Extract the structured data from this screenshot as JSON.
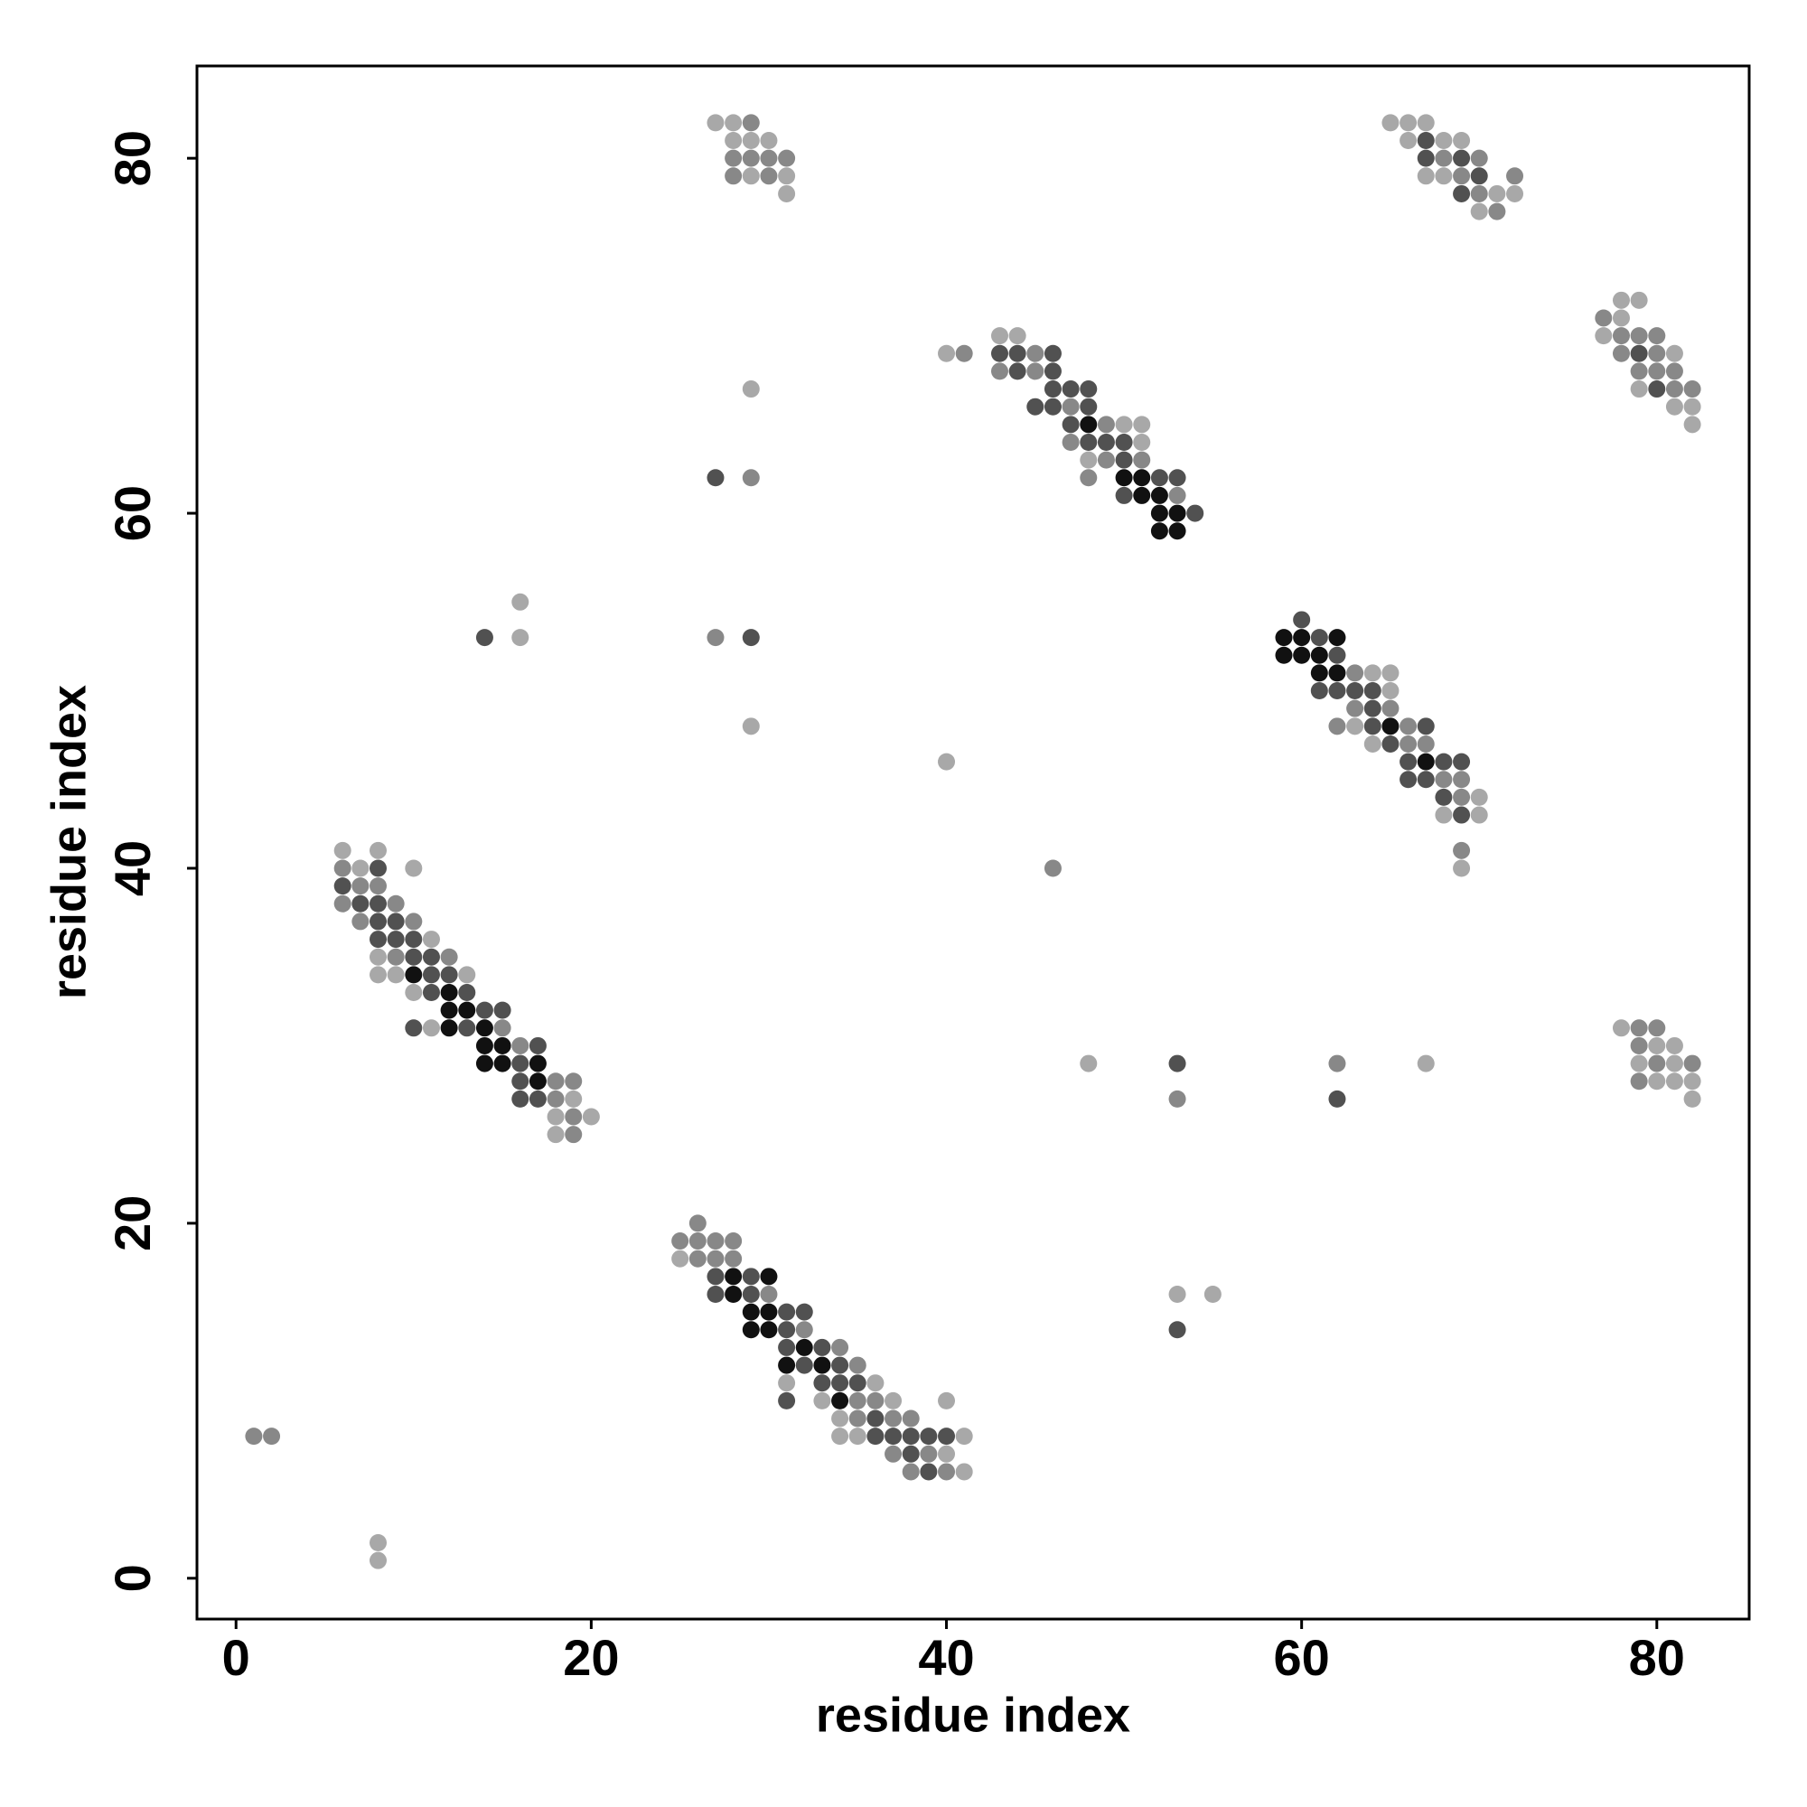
{
  "chart_data": {
    "type": "scatter",
    "xlabel": "residue index",
    "ylabel": "residue index",
    "xlim": [
      -2.2,
      85.2
    ],
    "ylim": [
      -2.3,
      85.2
    ],
    "xticks": [
      0,
      20,
      40,
      60,
      80
    ],
    "yticks": [
      0,
      20,
      40,
      60,
      80
    ],
    "series": [
      {
        "color": "#a8a8a8",
        "x": [
          27,
          28,
          28,
          29,
          30,
          29,
          31,
          31,
          65,
          66,
          67,
          66,
          68,
          69,
          67,
          68,
          71,
          72,
          70,
          78,
          79,
          78,
          77,
          81,
          79,
          81,
          82,
          82,
          40,
          43,
          44,
          50,
          51,
          51,
          48,
          29,
          64,
          65,
          65,
          63,
          64,
          70,
          68,
          70,
          69,
          6,
          8,
          7,
          10,
          11,
          8,
          8,
          9,
          13,
          10,
          11,
          19,
          18,
          20,
          18,
          25,
          31,
          36,
          33,
          37,
          40,
          34,
          34,
          35,
          41,
          40,
          41,
          16,
          16,
          29,
          40,
          48,
          67,
          53,
          55,
          8,
          8,
          78,
          80,
          81,
          79,
          81,
          80,
          81,
          82,
          82
        ],
        "values": [
          82,
          82,
          81,
          81,
          81,
          79,
          79,
          78,
          82,
          82,
          82,
          81,
          81,
          81,
          79,
          79,
          78,
          78,
          77,
          72,
          72,
          71,
          70,
          69,
          67,
          66,
          66,
          65,
          69,
          70,
          70,
          65,
          65,
          64,
          63,
          67,
          51,
          51,
          50,
          48,
          47,
          44,
          43,
          43,
          40,
          41,
          41,
          40,
          40,
          36,
          35,
          34,
          34,
          34,
          33,
          31,
          27,
          26,
          26,
          25,
          18,
          11,
          11,
          10,
          10,
          10,
          9,
          8,
          8,
          8,
          7,
          6,
          55,
          53,
          48,
          46,
          29,
          29,
          16,
          16,
          2,
          1,
          31,
          30,
          30,
          29,
          29,
          28,
          28,
          28,
          27
        ]
      },
      {
        "color": "#888888",
        "x": [
          29,
          28,
          29,
          30,
          31,
          28,
          30,
          70,
          68,
          69,
          72,
          70,
          71,
          77,
          78,
          79,
          80,
          78,
          80,
          79,
          80,
          81,
          81,
          82,
          41,
          45,
          43,
          45,
          47,
          49,
          47,
          49,
          51,
          29,
          48,
          53,
          63,
          63,
          65,
          62,
          66,
          66,
          67,
          68,
          69,
          69,
          69,
          6,
          7,
          8,
          6,
          9,
          7,
          10,
          9,
          12,
          15,
          16,
          18,
          19,
          18,
          19,
          19,
          26,
          25,
          26,
          27,
          28,
          26,
          27,
          28,
          30,
          32,
          34,
          35,
          35,
          36,
          35,
          37,
          38,
          37,
          39,
          38,
          40,
          27,
          46,
          62,
          53,
          1,
          2,
          79,
          80,
          79,
          80,
          82,
          79
        ],
        "values": [
          82,
          80,
          80,
          80,
          80,
          79,
          79,
          80,
          80,
          79,
          79,
          78,
          77,
          71,
          70,
          70,
          70,
          69,
          69,
          68,
          68,
          68,
          67,
          67,
          69,
          69,
          68,
          68,
          66,
          65,
          64,
          63,
          63,
          62,
          62,
          61,
          51,
          49,
          49,
          48,
          48,
          47,
          47,
          45,
          45,
          44,
          41,
          40,
          39,
          39,
          38,
          38,
          37,
          37,
          35,
          35,
          31,
          30,
          28,
          28,
          27,
          26,
          25,
          20,
          19,
          19,
          19,
          19,
          18,
          18,
          18,
          16,
          14,
          13,
          12,
          10,
          10,
          9,
          9,
          9,
          7,
          7,
          6,
          6,
          53,
          40,
          29,
          27,
          8,
          8,
          31,
          31,
          30,
          29,
          29,
          28
        ]
      },
      {
        "color": "#515151",
        "x": [
          67,
          67,
          69,
          70,
          69,
          79,
          80,
          43,
          44,
          46,
          44,
          46,
          46,
          47,
          48,
          45,
          46,
          48,
          47,
          48,
          49,
          50,
          50,
          27,
          52,
          53,
          50,
          54,
          60,
          61,
          62,
          61,
          62,
          63,
          64,
          64,
          64,
          67,
          65,
          66,
          68,
          69,
          66,
          67,
          68,
          69,
          8,
          6,
          7,
          8,
          8,
          9,
          8,
          9,
          10,
          10,
          11,
          11,
          12,
          11,
          13,
          14,
          15,
          10,
          13,
          17,
          16,
          16,
          16,
          17,
          27,
          29,
          27,
          29,
          31,
          32,
          31,
          31,
          33,
          32,
          34,
          33,
          34,
          35,
          31,
          36,
          36,
          37,
          38,
          39,
          40,
          38,
          39,
          14,
          29,
          53,
          62,
          53
        ],
        "values": [
          81,
          80,
          80,
          79,
          78,
          69,
          67,
          69,
          69,
          69,
          68,
          68,
          67,
          67,
          67,
          66,
          66,
          66,
          65,
          64,
          64,
          64,
          63,
          62,
          62,
          62,
          61,
          60,
          54,
          53,
          52,
          50,
          50,
          50,
          50,
          49,
          48,
          48,
          47,
          46,
          46,
          46,
          45,
          45,
          44,
          43,
          40,
          39,
          38,
          38,
          37,
          37,
          36,
          36,
          36,
          35,
          35,
          34,
          34,
          33,
          33,
          32,
          32,
          31,
          31,
          30,
          29,
          28,
          27,
          27,
          17,
          17,
          16,
          16,
          15,
          15,
          14,
          13,
          13,
          12,
          12,
          11,
          11,
          11,
          10,
          9,
          8,
          8,
          8,
          8,
          8,
          7,
          6,
          53,
          53,
          29,
          27,
          14
        ]
      },
      {
        "color": "#111111",
        "x": [
          48,
          50,
          51,
          51,
          52,
          52,
          53,
          52,
          53,
          59,
          60,
          62,
          59,
          60,
          61,
          61,
          62,
          65,
          67,
          10,
          12,
          12,
          13,
          12,
          14,
          14,
          15,
          14,
          15,
          17,
          17,
          28,
          30,
          28,
          29,
          30,
          29,
          30,
          32,
          31,
          33,
          34
        ],
        "values": [
          65,
          62,
          62,
          61,
          61,
          60,
          60,
          59,
          59,
          53,
          53,
          53,
          52,
          52,
          52,
          51,
          51,
          48,
          46,
          34,
          33,
          32,
          32,
          31,
          31,
          30,
          30,
          29,
          29,
          29,
          28,
          17,
          17,
          16,
          15,
          15,
          14,
          14,
          13,
          12,
          12,
          10
        ]
      }
    ]
  }
}
